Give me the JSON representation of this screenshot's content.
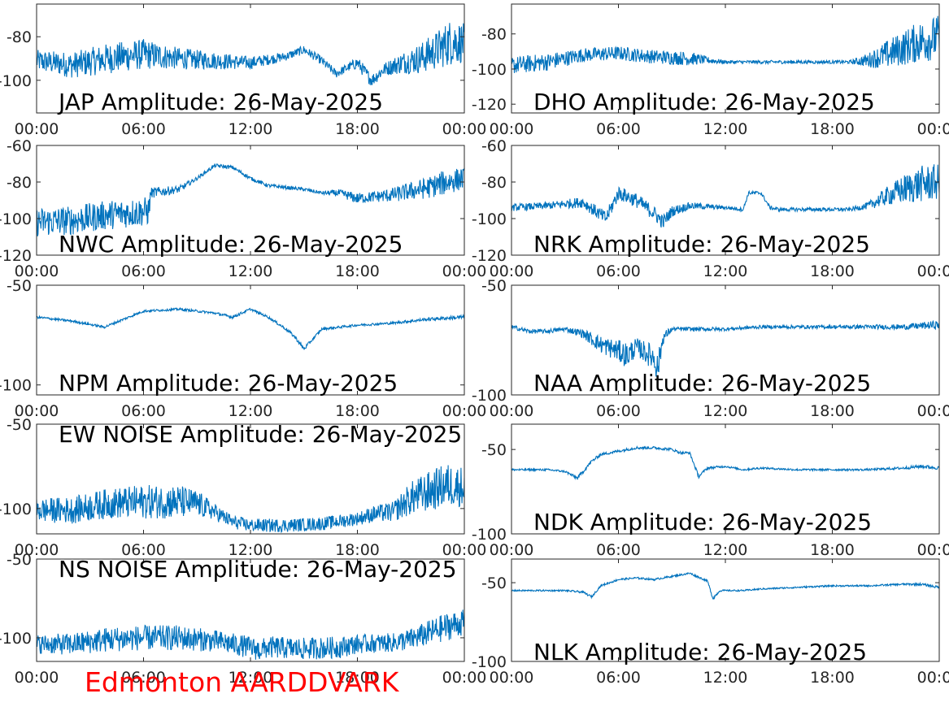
{
  "footer": {
    "text": "Edmonton AARDDVARK",
    "color": "#ff0000"
  },
  "style": {
    "line_color": "#0072bd",
    "axis_color": "#262626"
  },
  "chart_data": [
    {
      "type": "line",
      "title": "JAP Amplitude: 26-May-2025",
      "x_ticks": [
        "00:00",
        "06:00",
        "12:00",
        "18:00",
        "00:00"
      ],
      "y_ticks": [
        "-80",
        "-100"
      ],
      "ylim": [
        -115,
        -65
      ],
      "grid": false,
      "series": [
        {
          "x_hours": [
            0,
            2,
            4,
            6,
            8,
            10,
            12,
            14,
            15,
            16,
            16.8,
            17.5,
            18,
            18.8,
            19.5,
            20.5,
            21.5,
            22.5,
            23.3,
            24
          ],
          "center": [
            -91,
            -93,
            -90,
            -88,
            -90,
            -91,
            -92,
            -89,
            -86,
            -91,
            -97,
            -94,
            -92,
            -100,
            -95,
            -92,
            -90,
            -86,
            -82,
            -83
          ],
          "spread": [
            5,
            6,
            7,
            7,
            5,
            4,
            3,
            2,
            2,
            2,
            2,
            2,
            3,
            3,
            3,
            5,
            7,
            9,
            11,
            9
          ]
        }
      ]
    },
    {
      "type": "line",
      "title": "DHO Amplitude: 26-May-2025",
      "x_ticks": [
        "00:00",
        "06:00",
        "12:00",
        "18:00",
        "00:00"
      ],
      "y_ticks": [
        "-80",
        "-100",
        "-120"
      ],
      "ylim": [
        -125,
        -63
      ],
      "grid": false,
      "series": [
        {
          "x_hours": [
            0,
            2,
            4,
            6,
            7,
            8,
            10,
            11,
            12,
            13,
            15,
            18,
            19,
            20,
            21,
            22,
            23,
            24
          ],
          "center": [
            -98,
            -96,
            -92,
            -91,
            -92,
            -93,
            -94,
            -95,
            -96,
            -96,
            -96,
            -96,
            -96,
            -95,
            -92,
            -88,
            -84,
            -82
          ],
          "spread": [
            5,
            5,
            4,
            4,
            4,
            4,
            4,
            2,
            1,
            1,
            1,
            1,
            1,
            4,
            8,
            10,
            12,
            13
          ]
        }
      ]
    },
    {
      "type": "line",
      "title": "NWC Amplitude: 26-May-2025",
      "x_ticks": [
        "00:00",
        "06:00",
        "12:00",
        "18:00",
        "00:00"
      ],
      "y_ticks": [
        "-60",
        "-80",
        "-100",
        "-120"
      ],
      "ylim": [
        -120,
        -60
      ],
      "grid": false,
      "series": [
        {
          "x_hours": [
            0,
            2,
            4,
            6.3,
            6.4,
            8,
            9,
            10,
            11,
            12,
            13,
            14,
            15,
            16,
            17,
            18,
            19,
            20,
            21,
            22,
            23,
            24
          ],
          "center": [
            -102,
            -101,
            -98,
            -96,
            -86,
            -84,
            -78,
            -71,
            -72,
            -78,
            -82,
            -83,
            -84,
            -86,
            -86,
            -89,
            -88,
            -87,
            -85,
            -83,
            -80,
            -78
          ],
          "spread": [
            8,
            8,
            8,
            8,
            3,
            2,
            1,
            1,
            1,
            1,
            1,
            1,
            1,
            1,
            2,
            3,
            3,
            4,
            5,
            6,
            7,
            6
          ]
        }
      ]
    },
    {
      "type": "line",
      "title": "NRK Amplitude: 26-May-2025",
      "x_ticks": [
        "00:00",
        "06:00",
        "12:00",
        "18:00",
        "00:00"
      ],
      "y_ticks": [
        "-60",
        "-80",
        "-100",
        "-120"
      ],
      "ylim": [
        -120,
        -60
      ],
      "grid": false,
      "series": [
        {
          "x_hours": [
            0,
            2,
            4,
            5.3,
            6,
            7,
            8,
            8.5,
            9,
            10,
            12,
            13,
            13.3,
            14,
            14.5,
            15,
            17,
            19,
            20,
            21,
            22,
            23,
            24
          ],
          "center": [
            -94,
            -93,
            -91,
            -100,
            -86,
            -90,
            -97,
            -102,
            -96,
            -93,
            -94,
            -95,
            -86,
            -86,
            -94,
            -95,
            -95,
            -95,
            -93,
            -88,
            -84,
            -81,
            -80
          ],
          "spread": [
            2,
            2,
            3,
            4,
            4,
            4,
            4,
            4,
            3,
            2,
            1,
            1,
            1,
            1,
            1,
            1,
            1,
            1,
            2,
            5,
            8,
            10,
            10
          ]
        }
      ]
    },
    {
      "type": "line",
      "title": "NPM Amplitude: 26-May-2025",
      "x_ticks": [
        "00:00",
        "06:00",
        "12:00",
        "18:00",
        "00:00"
      ],
      "y_ticks": [
        "-50",
        "-100"
      ],
      "ylim": [
        -105,
        -50
      ],
      "grid": false,
      "series": [
        {
          "x_hours": [
            0,
            2,
            3.8,
            6,
            8,
            10,
            11,
            12,
            13,
            14,
            14.5,
            15,
            16,
            18,
            20,
            22,
            24
          ],
          "center": [
            -66,
            -68,
            -71,
            -63,
            -62,
            -64,
            -66,
            -62,
            -66,
            -72,
            -76,
            -82,
            -72,
            -70,
            -69,
            -67,
            -66
          ],
          "spread": [
            0.6,
            0.6,
            0.6,
            0.6,
            0.6,
            0.6,
            0.8,
            0.6,
            0.6,
            0.8,
            0.8,
            1,
            0.6,
            0.6,
            0.6,
            0.8,
            1
          ]
        }
      ]
    },
    {
      "type": "line",
      "title": "NAA Amplitude: 26-May-2025",
      "x_ticks": [
        "00:00",
        "06:00",
        "12:00",
        "18:00",
        "00:00"
      ],
      "y_ticks": [
        "-50",
        "-100"
      ],
      "ylim": [
        -100,
        -50
      ],
      "grid": false,
      "series": [
        {
          "x_hours": [
            0,
            1,
            2,
            3,
            4,
            5,
            6,
            6.5,
            7,
            8,
            8.2,
            8.5,
            9,
            10,
            12,
            14,
            16,
            18,
            20,
            22,
            24
          ],
          "center": [
            -69,
            -71,
            -71,
            -70,
            -72,
            -77,
            -80,
            -82,
            -78,
            -83,
            -88,
            -74,
            -70,
            -70,
            -70,
            -69,
            -69,
            -69,
            -69,
            -69,
            -68
          ],
          "spread": [
            1,
            1,
            1,
            1,
            2,
            4,
            5,
            6,
            4,
            6,
            7,
            3,
            1,
            1,
            0.8,
            0.8,
            0.8,
            0.8,
            1,
            1.2,
            2
          ]
        }
      ]
    },
    {
      "type": "line",
      "title": "EW NOISE Amplitude: 26-May-2025",
      "x_ticks": [
        "00:00",
        "06:00",
        "12:00",
        "18:00",
        "00:00"
      ],
      "y_ticks": [
        "-50",
        "-100"
      ],
      "ylim": [
        -115,
        -50
      ],
      "grid": false,
      "series": [
        {
          "x_hours": [
            0,
            2,
            4,
            6,
            8,
            9,
            10,
            11,
            12,
            14,
            16,
            18,
            19,
            20,
            21,
            22,
            23,
            24
          ],
          "center": [
            -101,
            -101,
            -97,
            -96,
            -96,
            -97,
            -102,
            -108,
            -110,
            -110,
            -109,
            -106,
            -103,
            -102,
            -94,
            -90,
            -86,
            -87
          ],
          "spread": [
            7,
            8,
            9,
            10,
            10,
            8,
            5,
            4,
            4,
            4,
            4,
            4,
            5,
            6,
            10,
            12,
            13,
            12
          ]
        }
      ]
    },
    {
      "type": "line",
      "title": "NDK Amplitude: 26-May-2025",
      "x_ticks": [
        "00:00",
        "06:00",
        "12:00",
        "18:00",
        "00:00"
      ],
      "y_ticks": [
        "-50",
        "-100"
      ],
      "ylim": [
        -100,
        -35
      ],
      "grid": false,
      "series": [
        {
          "x_hours": [
            0,
            2,
            3,
            3.7,
            4.5,
            5,
            6,
            7,
            8,
            9,
            9.5,
            10,
            10.5,
            11,
            12,
            13,
            14,
            16,
            18,
            20,
            22,
            23,
            24
          ],
          "center": [
            -62,
            -62,
            -63,
            -67,
            -57,
            -53,
            -51,
            -49,
            -49,
            -50,
            -52,
            -52,
            -66,
            -61,
            -60,
            -62,
            -61,
            -62,
            -62,
            -62,
            -61,
            -60,
            -61
          ],
          "spread": [
            0.6,
            0.6,
            0.6,
            1,
            1,
            0.8,
            0.8,
            0.8,
            0.8,
            0.8,
            0.8,
            0.8,
            1,
            0.8,
            0.6,
            0.6,
            0.6,
            0.6,
            0.6,
            0.6,
            0.8,
            1,
            1
          ]
        }
      ]
    },
    {
      "type": "line",
      "title": "NS NOISE Amplitude: 26-May-2025",
      "x_ticks": [
        "00:00",
        "06:00",
        "12:00",
        "18:00",
        "00:00"
      ],
      "y_ticks": [
        "-50",
        "-100"
      ],
      "ylim": [
        -115,
        -50
      ],
      "grid": false,
      "series": [
        {
          "x_hours": [
            0,
            2,
            4,
            6,
            8,
            10,
            12,
            12.5,
            13,
            15,
            17,
            18,
            20,
            21,
            22,
            23,
            24
          ],
          "center": [
            -104,
            -104,
            -101,
            -100,
            -100,
            -102,
            -106,
            -108,
            -106,
            -107,
            -106,
            -104,
            -103,
            -101,
            -97,
            -93,
            -90
          ],
          "spread": [
            6,
            7,
            8,
            8,
            8,
            7,
            7,
            7,
            7,
            7,
            7,
            6,
            6,
            7,
            8,
            9,
            8
          ]
        }
      ]
    },
    {
      "type": "line",
      "title": "NLK Amplitude: 26-May-2025",
      "x_ticks": [
        "00:00",
        "06:00",
        "12:00",
        "18:00",
        "00:00"
      ],
      "y_ticks": [
        "-50",
        "-100"
      ],
      "ylim": [
        -100,
        -35
      ],
      "grid": false,
      "series": [
        {
          "x_hours": [
            0,
            2,
            3,
            4,
            4.5,
            5,
            6,
            7,
            8,
            9,
            10,
            11,
            11.3,
            11.7,
            12,
            13,
            14,
            16,
            18,
            20,
            22,
            23,
            24
          ],
          "center": [
            -55,
            -55,
            -55,
            -56,
            -59,
            -52,
            -48,
            -47,
            -48,
            -46,
            -44,
            -49,
            -60,
            -55,
            -55,
            -55,
            -54,
            -53,
            -52,
            -52,
            -51,
            -51,
            -53
          ],
          "spread": [
            0.5,
            0.5,
            0.5,
            0.7,
            0.7,
            0.6,
            0.6,
            0.6,
            0.6,
            0.6,
            0.6,
            0.6,
            1,
            0.6,
            0.5,
            0.5,
            0.5,
            0.5,
            0.5,
            0.5,
            0.6,
            0.8,
            0.8
          ]
        }
      ]
    }
  ]
}
